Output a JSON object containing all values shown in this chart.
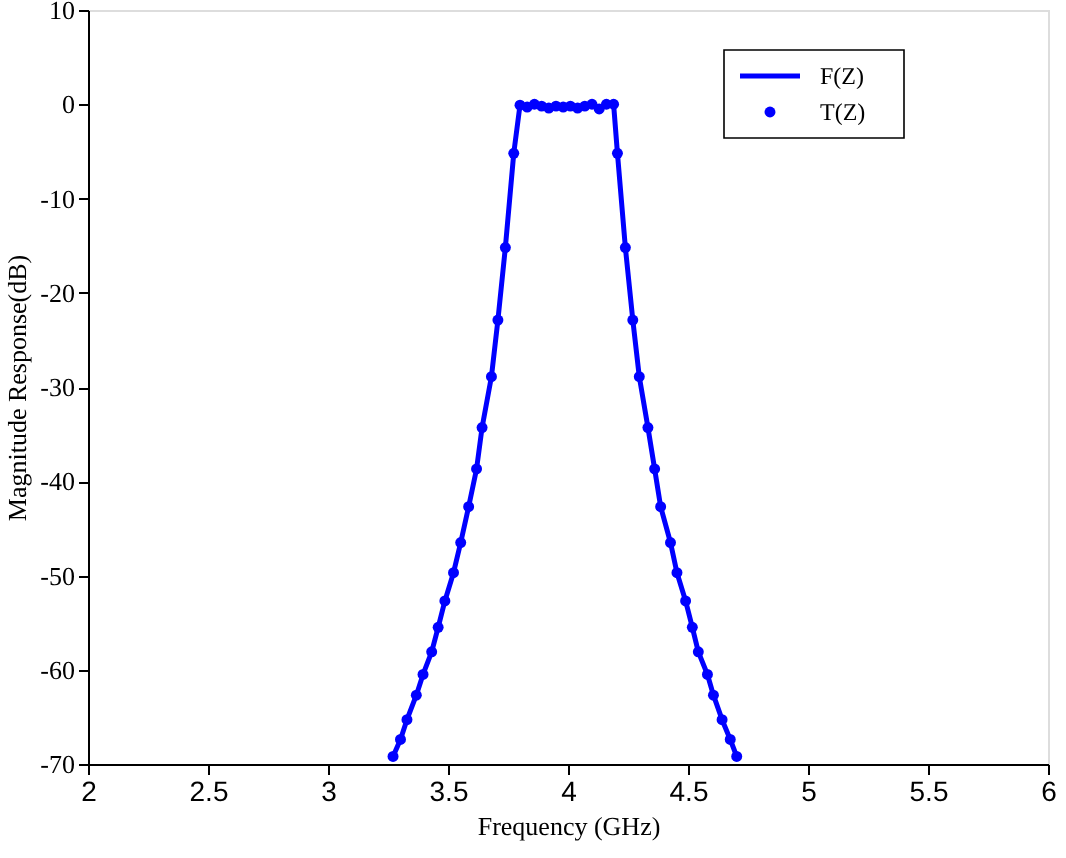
{
  "chart_data": {
    "type": "line",
    "xlabel": "Frequency (GHz)",
    "ylabel": "Magnitude Response(dB)",
    "x": [
      3.271,
      3.302,
      3.329,
      3.368,
      3.396,
      3.432,
      3.459,
      3.487,
      3.523,
      3.553,
      3.586,
      3.619,
      3.642,
      3.681,
      3.708,
      3.739,
      3.774,
      3.8,
      3.83,
      3.86,
      3.89,
      3.92,
      3.95,
      3.98,
      4.01,
      4.04,
      4.07,
      4.1,
      4.13,
      4.16,
      4.19,
      4.206,
      4.239,
      4.27,
      4.297,
      4.333,
      4.361,
      4.386,
      4.427,
      4.454,
      4.49,
      4.518,
      4.543,
      4.581,
      4.606,
      4.642,
      4.676,
      4.703
    ],
    "series": [
      {
        "name": "F(Z)",
        "color": "#0000ff",
        "values": [
          -69.2,
          -67.4,
          -65.3,
          -62.7,
          -60.5,
          -58.1,
          -55.5,
          -52.7,
          -49.7,
          -46.5,
          -42.7,
          -38.7,
          -34.3,
          -28.9,
          -22.9,
          -15.2,
          -5.2,
          -0.1,
          -0.3,
          0,
          -0.2,
          -0.4,
          -0.2,
          -0.3,
          -0.2,
          -0.4,
          -0.2,
          0,
          -0.5,
          0,
          0,
          -5.2,
          -15.2,
          -22.9,
          -28.9,
          -34.3,
          -38.7,
          -42.7,
          -46.5,
          -49.7,
          -52.7,
          -55.5,
          -58.1,
          -60.5,
          -62.7,
          -65.3,
          -67.4,
          -69.2
        ]
      },
      {
        "name": "T(Z)",
        "type": "scatter",
        "color": "#0000ff",
        "marker": "circle",
        "values": [
          -69.2,
          -67.4,
          -65.3,
          -62.7,
          -60.5,
          -58.1,
          -55.5,
          -52.7,
          -49.7,
          -46.5,
          -42.7,
          -38.7,
          -34.3,
          -28.9,
          -22.9,
          -15.2,
          -5.2,
          -0.1,
          -0.3,
          0,
          -0.2,
          -0.4,
          -0.2,
          -0.3,
          -0.2,
          -0.4,
          -0.2,
          0,
          -0.5,
          0,
          0,
          -5.2,
          -15.2,
          -22.9,
          -28.9,
          -34.3,
          -38.7,
          -42.7,
          -46.5,
          -49.7,
          -52.7,
          -55.5,
          -58.1,
          -60.5,
          -62.7,
          -65.3,
          -67.4,
          -69.2
        ]
      }
    ],
    "xlim": [
      2,
      6
    ],
    "xticks": [
      2,
      2.5,
      3,
      3.5,
      4,
      4.5,
      5,
      5.5,
      6
    ],
    "ylim": [
      -70,
      10
    ],
    "yticks": [
      -70,
      -60,
      -50,
      -40,
      -30,
      -20,
      -10,
      0,
      10
    ],
    "grid": false,
    "legend": "top right"
  }
}
